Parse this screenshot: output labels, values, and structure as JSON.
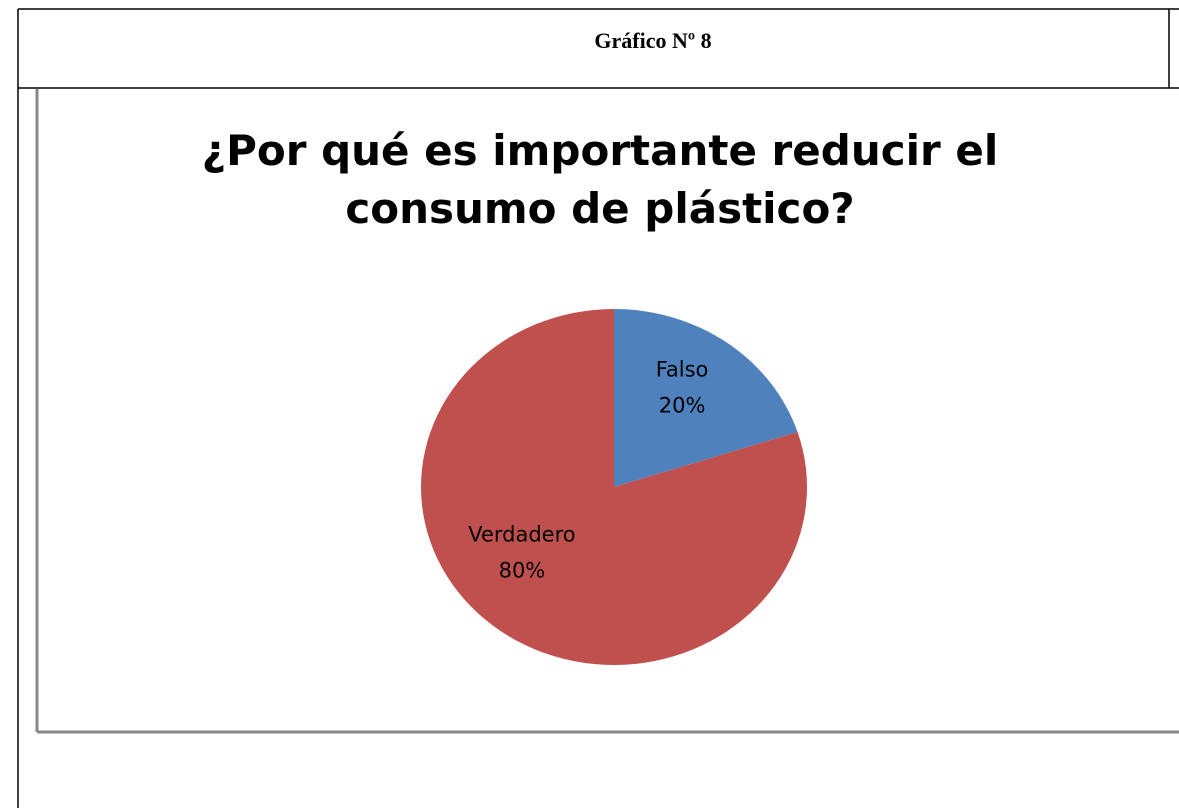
{
  "header": {
    "title": "Gráfico Nº 8"
  },
  "chart_data": {
    "type": "pie",
    "title": "¿Por qué es importante reducir el consumo de plástico?",
    "categories": [
      "Falso",
      "Verdadero"
    ],
    "values": [
      20,
      80
    ],
    "value_labels": [
      "20%",
      "80%"
    ],
    "colors": [
      "#4f81bd",
      "#c0504d"
    ]
  }
}
